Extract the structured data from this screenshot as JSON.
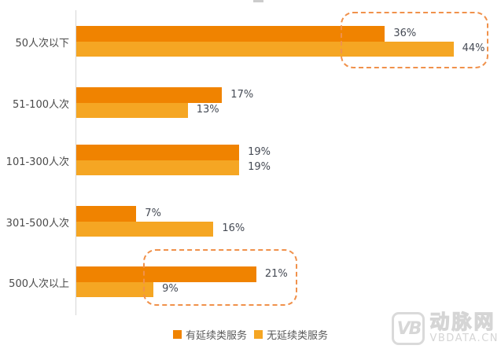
{
  "chart_data": {
    "type": "bar",
    "orientation": "horizontal",
    "title": "",
    "categories": [
      "50人次以下",
      "51-100人次",
      "101-300人次",
      "301-500人次",
      "500人次以上"
    ],
    "series": [
      {
        "name": "有延续类服务",
        "color": "#F08300",
        "values": [
          36,
          17,
          19,
          7,
          21
        ]
      },
      {
        "name": "无延续类服务",
        "color": "#F5A623",
        "values": [
          44,
          13,
          19,
          16,
          9
        ]
      }
    ],
    "value_suffix": "%",
    "xlim": [
      0,
      50
    ],
    "grid": false,
    "legend_position": "bottom",
    "annotations": [
      {
        "type": "dashed-box",
        "category": "50人次以下",
        "values_highlighted": [
          "36%",
          "44%"
        ]
      },
      {
        "type": "dashed-box",
        "category": "500人次以上",
        "values_highlighted": [
          "21%",
          "9%"
        ]
      }
    ]
  },
  "watermark": {
    "icon": "VB",
    "brand": "动脉网",
    "domain": "VBDATA.CN"
  },
  "colors": {
    "series_dark": "#F08300",
    "series_light": "#F5A623",
    "highlight_border": "#F0914B",
    "axis": "#D6D6D6",
    "category_text": "#4A4A4A",
    "value_text": "#454A54",
    "legend_text": "#595959",
    "watermark": "#D7D7D7"
  }
}
